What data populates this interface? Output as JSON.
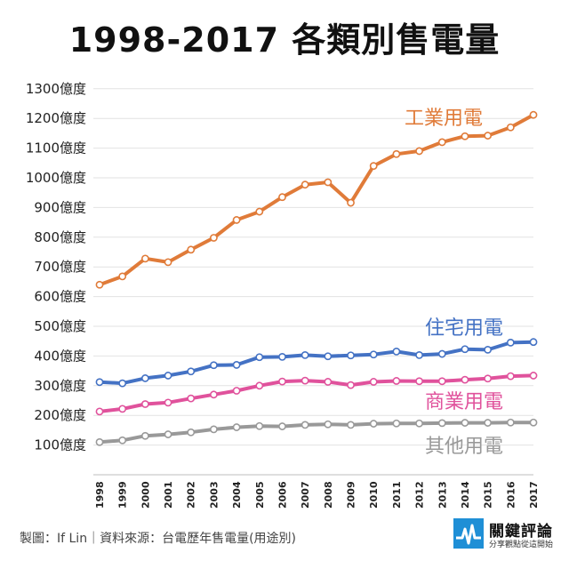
{
  "title": "1998-2017 各類別售電量",
  "footer": "製圖：If Lin｜資料來源：台電歷年售電量(用途別)",
  "brand": {
    "name": "關鍵評論",
    "tagline": "分享觀點從這開始",
    "color": "#1f8fd6"
  },
  "chart_data": {
    "type": "line",
    "title": "1998-2017 各類別售電量",
    "xlabel": "",
    "ylabel": "",
    "ylim": [
      0,
      1300
    ],
    "y_ticks": [
      100,
      200,
      300,
      400,
      500,
      600,
      700,
      800,
      900,
      1000,
      1100,
      1200,
      1300
    ],
    "y_tick_suffix": "億度",
    "grid": true,
    "x": [
      "1998",
      "1999",
      "2000",
      "2001",
      "2002",
      "2003",
      "2004",
      "2005",
      "2006",
      "2007",
      "2008",
      "2009",
      "2010",
      "2011",
      "2012",
      "2013",
      "2014",
      "2015",
      "2016",
      "2017"
    ],
    "series": [
      {
        "name": "工業用電",
        "color": "#e07b39",
        "values": [
          640,
          668,
          728,
          716,
          758,
          798,
          858,
          886,
          935,
          977,
          985,
          916,
          1040,
          1080,
          1090,
          1120,
          1140,
          1142,
          1170,
          1212
        ]
      },
      {
        "name": "住宅用電",
        "color": "#4472c4",
        "values": [
          312,
          308,
          325,
          334,
          348,
          369,
          370,
          396,
          397,
          403,
          399,
          402,
          405,
          415,
          403,
          407,
          423,
          421,
          445,
          447
        ]
      },
      {
        "name": "商業用電",
        "color": "#e0529c",
        "values": [
          213,
          222,
          238,
          243,
          257,
          270,
          283,
          300,
          314,
          317,
          313,
          302,
          313,
          316,
          315,
          315,
          320,
          324,
          332,
          334
        ]
      },
      {
        "name": "其他用電",
        "color": "#999999",
        "values": [
          110,
          116,
          131,
          136,
          143,
          153,
          160,
          164,
          163,
          168,
          170,
          168,
          172,
          173,
          173,
          174,
          175,
          175,
          176,
          176
        ]
      }
    ]
  }
}
